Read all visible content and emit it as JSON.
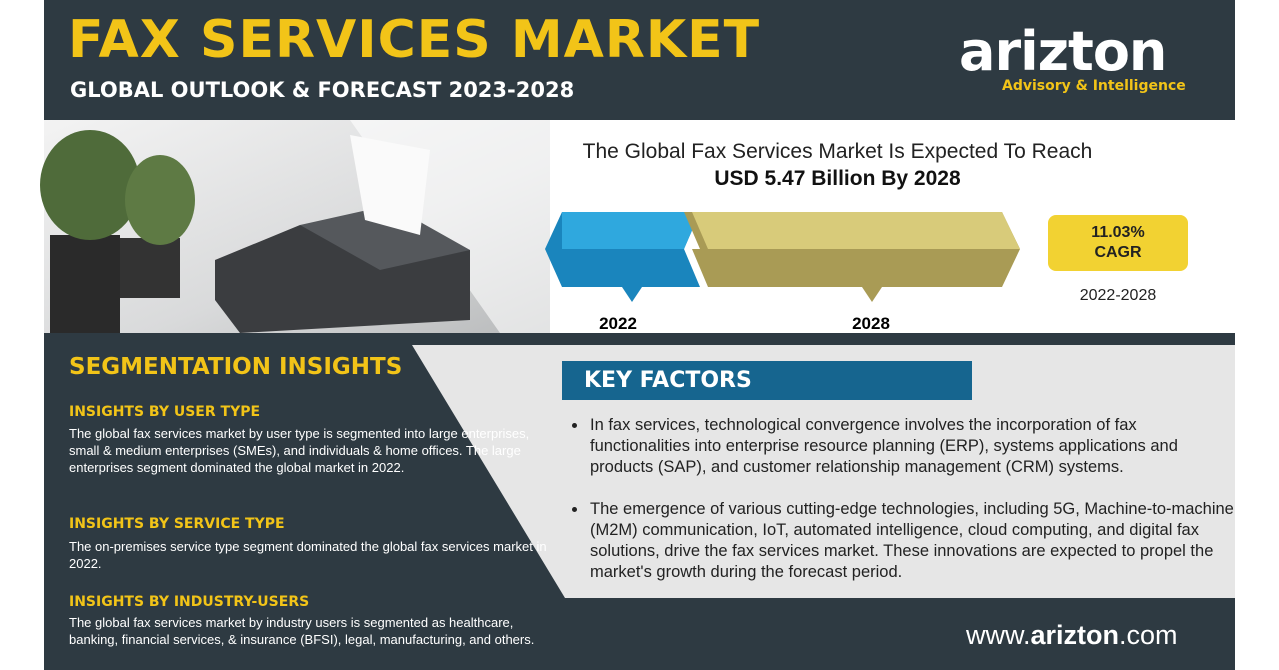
{
  "header": {
    "title": "FAX SERVICES MARKET",
    "subtitle": "GLOBAL OUTLOOK & FORECAST 2023-2028",
    "logo_name": "arizton",
    "logo_tagline": "Advisory & Intelligence"
  },
  "forecast": {
    "statement": "The Global Fax Services Market Is Expected To Reach",
    "value": "USD 5.47 Billion By 2028",
    "start_year": "2022",
    "end_year": "2028",
    "cagr": "11.03%",
    "cagr_label": "CAGR",
    "period": "2022-2028"
  },
  "segmentation": {
    "title": "SEGMENTATION INSIGHTS",
    "items": [
      {
        "heading": "INSIGHTS BY USER TYPE",
        "text": "The global fax services market by user type is segmented into large enterprises, small & medium enterprises (SMEs), and individuals & home offices. The large enterprises segment dominated the global market in 2022."
      },
      {
        "heading": "INSIGHTS BY SERVICE TYPE",
        "text": "The on-premises service type segment dominated the global fax services market in 2022."
      },
      {
        "heading": "INSIGHTS BY INDUSTRY-USERS",
        "text": "The global fax services market by industry users is segmented as healthcare, banking, financial services, & insurance (BFSI), legal, manufacturing, and others."
      }
    ]
  },
  "key_factors": {
    "title": "KEY FACTORS",
    "bullets": [
      "In fax services, technological convergence involves the incorporation of fax functionalities into enterprise resource planning (ERP), systems applications and products (SAP), and customer relationship management (CRM) systems.",
      "The emergence of various cutting-edge technologies, including 5G, Machine-to-machine (M2M) communication, IoT, automated intelligence, cloud computing, and digital fax solutions, drive the fax services market. These innovations are expected to propel the market's growth during the forecast period."
    ]
  },
  "footer": {
    "url_prefix": "www.",
    "url_brand": "arizton",
    "url_suffix": ".com"
  }
}
